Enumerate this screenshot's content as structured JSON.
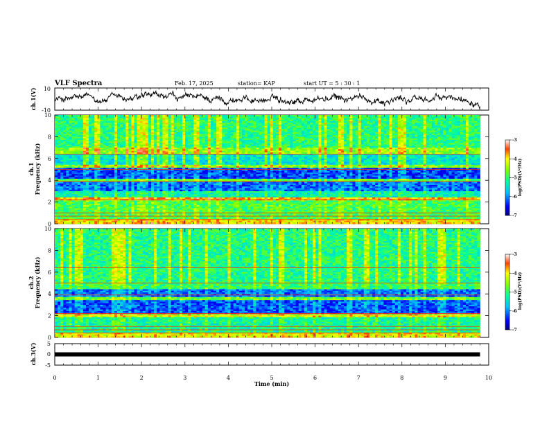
{
  "header": {
    "title": "VLF Spectra",
    "date": "Feb. 17, 2025",
    "station": "station= KAP",
    "start_ut": "start  UT  =   5  : 30 : 1"
  },
  "chart_data": [
    {
      "type": "line",
      "panel": "ch1-waveform",
      "ylabel": "ch.1(V)",
      "ylim": [
        -10,
        10
      ],
      "yticks": [
        "10",
        "-10"
      ],
      "xlim": [
        0,
        10
      ],
      "x_end": 9.8,
      "color": "#000000"
    },
    {
      "type": "heatmap",
      "panel": "ch1-spectrogram",
      "ylabel": "ch.1\nFrequency (kHz)",
      "ylim": [
        0,
        10
      ],
      "yticks": [
        "0",
        "2",
        "4",
        "6",
        "8",
        "10"
      ],
      "xlim": [
        0,
        10
      ],
      "x_end": 9.8,
      "colorbar": {
        "label": "log(PSD)(V²/Hz)",
        "range": [
          -7,
          -3
        ],
        "ticks": [
          "-3",
          "-4",
          "-5",
          "-6",
          "-7"
        ]
      }
    },
    {
      "type": "heatmap",
      "panel": "ch2-spectrogram",
      "ylabel": "ch.2\nFrequency (kHz)",
      "ylim": [
        0,
        10
      ],
      "yticks": [
        "0",
        "2",
        "4",
        "6",
        "8",
        "10"
      ],
      "xlim": [
        0,
        10
      ],
      "x_end": 9.8,
      "colorbar": {
        "label": "log(PSD)(V²/Hz)",
        "range": [
          -7,
          -3
        ],
        "ticks": [
          "-3",
          "-4",
          "-5",
          "-6",
          "-7"
        ]
      }
    },
    {
      "type": "line",
      "panel": "ch3-waveform",
      "ylabel": "ch.3(V)",
      "ylim": [
        -5,
        5
      ],
      "yticks": [
        "5",
        "0",
        "-5"
      ],
      "xlim": [
        0,
        10
      ],
      "x_end": 9.8,
      "value": 0,
      "color": "#000000"
    }
  ],
  "xaxis": {
    "label": "Time  (min)",
    "ticks": [
      "0",
      "1",
      "2",
      "3",
      "4",
      "5",
      "6",
      "7",
      "8",
      "9",
      "10"
    ]
  }
}
